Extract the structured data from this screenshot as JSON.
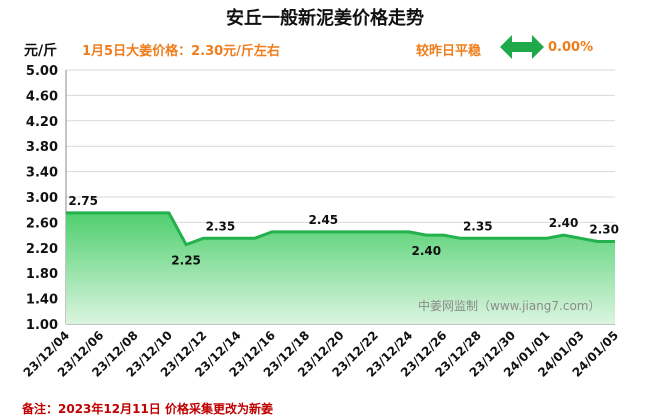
{
  "header": {
    "title": "安丘一般新泥姜价格走势",
    "unit": "元/斤",
    "price_note": "1月5日大姜价格：2.30元/斤左右",
    "compare_label": "较昨日平稳",
    "compare_pct": "0.00%"
  },
  "footnote": "备注：2023年12月11日 价格采集更改为新姜",
  "watermark": "中姜网监制（www.jiang7.com）",
  "colors": {
    "line": "#22b14c",
    "fill_top": "#4fcf6e",
    "fill_bottom": "#dbf5df",
    "accent": "#f07d1c",
    "note": "#c00000",
    "arrow": "#1fa94a"
  },
  "chart_data": {
    "type": "area",
    "x": [
      "23/12/04",
      "23/12/05",
      "23/12/06",
      "23/12/07",
      "23/12/08",
      "23/12/09",
      "23/12/10",
      "23/12/11",
      "23/12/12",
      "23/12/13",
      "23/12/14",
      "23/12/15",
      "23/12/16",
      "23/12/17",
      "23/12/18",
      "23/12/19",
      "23/12/20",
      "23/12/21",
      "23/12/22",
      "23/12/23",
      "23/12/24",
      "23/12/25",
      "23/12/26",
      "23/12/27",
      "23/12/28",
      "23/12/29",
      "23/12/30",
      "23/12/31",
      "24/01/01",
      "24/01/02",
      "24/01/03",
      "24/01/04",
      "24/01/05"
    ],
    "values": [
      2.75,
      2.75,
      2.75,
      2.75,
      2.75,
      2.75,
      2.75,
      2.25,
      2.35,
      2.35,
      2.35,
      2.35,
      2.45,
      2.45,
      2.45,
      2.45,
      2.45,
      2.45,
      2.45,
      2.45,
      2.45,
      2.4,
      2.4,
      2.35,
      2.35,
      2.35,
      2.35,
      2.35,
      2.35,
      2.4,
      2.35,
      2.3,
      2.3
    ],
    "xticks": [
      "23/12/04",
      "23/12/06",
      "23/12/08",
      "23/12/10",
      "23/12/12",
      "23/12/14",
      "23/12/16",
      "23/12/18",
      "23/12/20",
      "23/12/22",
      "23/12/24",
      "23/12/26",
      "23/12/28",
      "23/12/30",
      "24/01/01",
      "24/01/03",
      "24/01/05"
    ],
    "yticks": [
      "1.00",
      "1.40",
      "1.80",
      "2.20",
      "2.60",
      "3.00",
      "3.40",
      "3.80",
      "4.20",
      "4.60",
      "5.00"
    ],
    "ylim": [
      1.0,
      5.0
    ],
    "data_labels": [
      {
        "x": "23/12/05",
        "text": "2.75"
      },
      {
        "x": "23/12/11",
        "text": "2.25"
      },
      {
        "x": "23/12/13",
        "text": "2.35"
      },
      {
        "x": "23/12/19",
        "text": "2.45"
      },
      {
        "x": "23/12/25",
        "text": "2.40"
      },
      {
        "x": "23/12/28",
        "text": "2.35"
      },
      {
        "x": "24/01/02",
        "text": "2.40"
      },
      {
        "x": "24/01/05",
        "text": "2.30"
      }
    ],
    "grid": true
  }
}
